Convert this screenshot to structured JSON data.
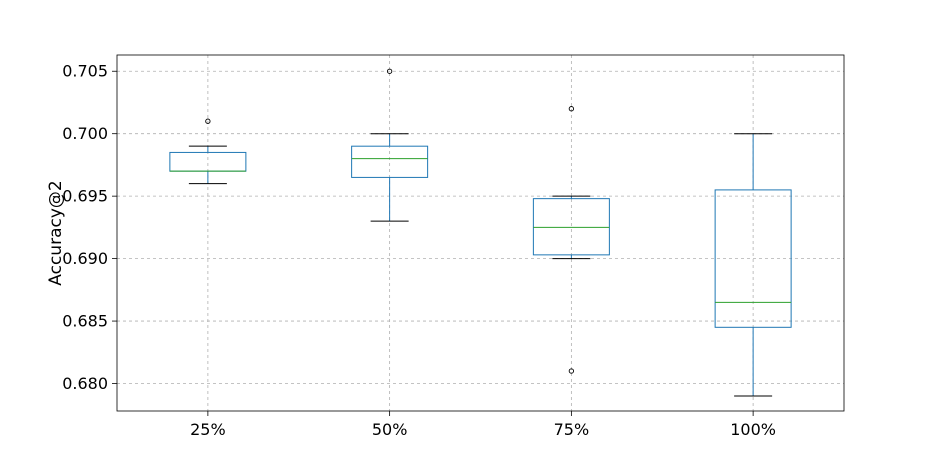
{
  "chart_data": {
    "type": "box",
    "title": "",
    "xlabel": "",
    "ylabel": "Accuracy@2",
    "categories": [
      "25%",
      "50%",
      "75%",
      "100%"
    ],
    "ylim": [
      0.6778,
      0.7063
    ],
    "yticks": [
      0.68,
      0.685,
      0.69,
      0.695,
      0.7,
      0.705
    ],
    "ytick_labels": [
      "0.680",
      "0.685",
      "0.690",
      "0.695",
      "0.700",
      "0.705"
    ],
    "grid": true,
    "boxes": [
      {
        "category": "25%",
        "whisker_low": 0.696,
        "q1": 0.697,
        "median": 0.697,
        "q3": 0.6985,
        "whisker_high": 0.699,
        "outliers": [
          0.701
        ]
      },
      {
        "category": "50%",
        "whisker_low": 0.693,
        "q1": 0.6965,
        "median": 0.698,
        "q3": 0.699,
        "whisker_high": 0.7,
        "outliers": [
          0.705
        ]
      },
      {
        "category": "75%",
        "whisker_low": 0.69,
        "q1": 0.6903,
        "median": 0.6925,
        "q3": 0.6948,
        "whisker_high": 0.695,
        "outliers": [
          0.702,
          0.681
        ]
      },
      {
        "category": "100%",
        "whisker_low": 0.679,
        "q1": 0.6845,
        "median": 0.6865,
        "q3": 0.6955,
        "whisker_high": 0.7,
        "outliers": []
      }
    ],
    "colors": {
      "box": "#1f77b4",
      "median": "#2ca02c",
      "whisker": "#000000",
      "grid": "#b0b0b0",
      "frame": "#000000"
    }
  }
}
